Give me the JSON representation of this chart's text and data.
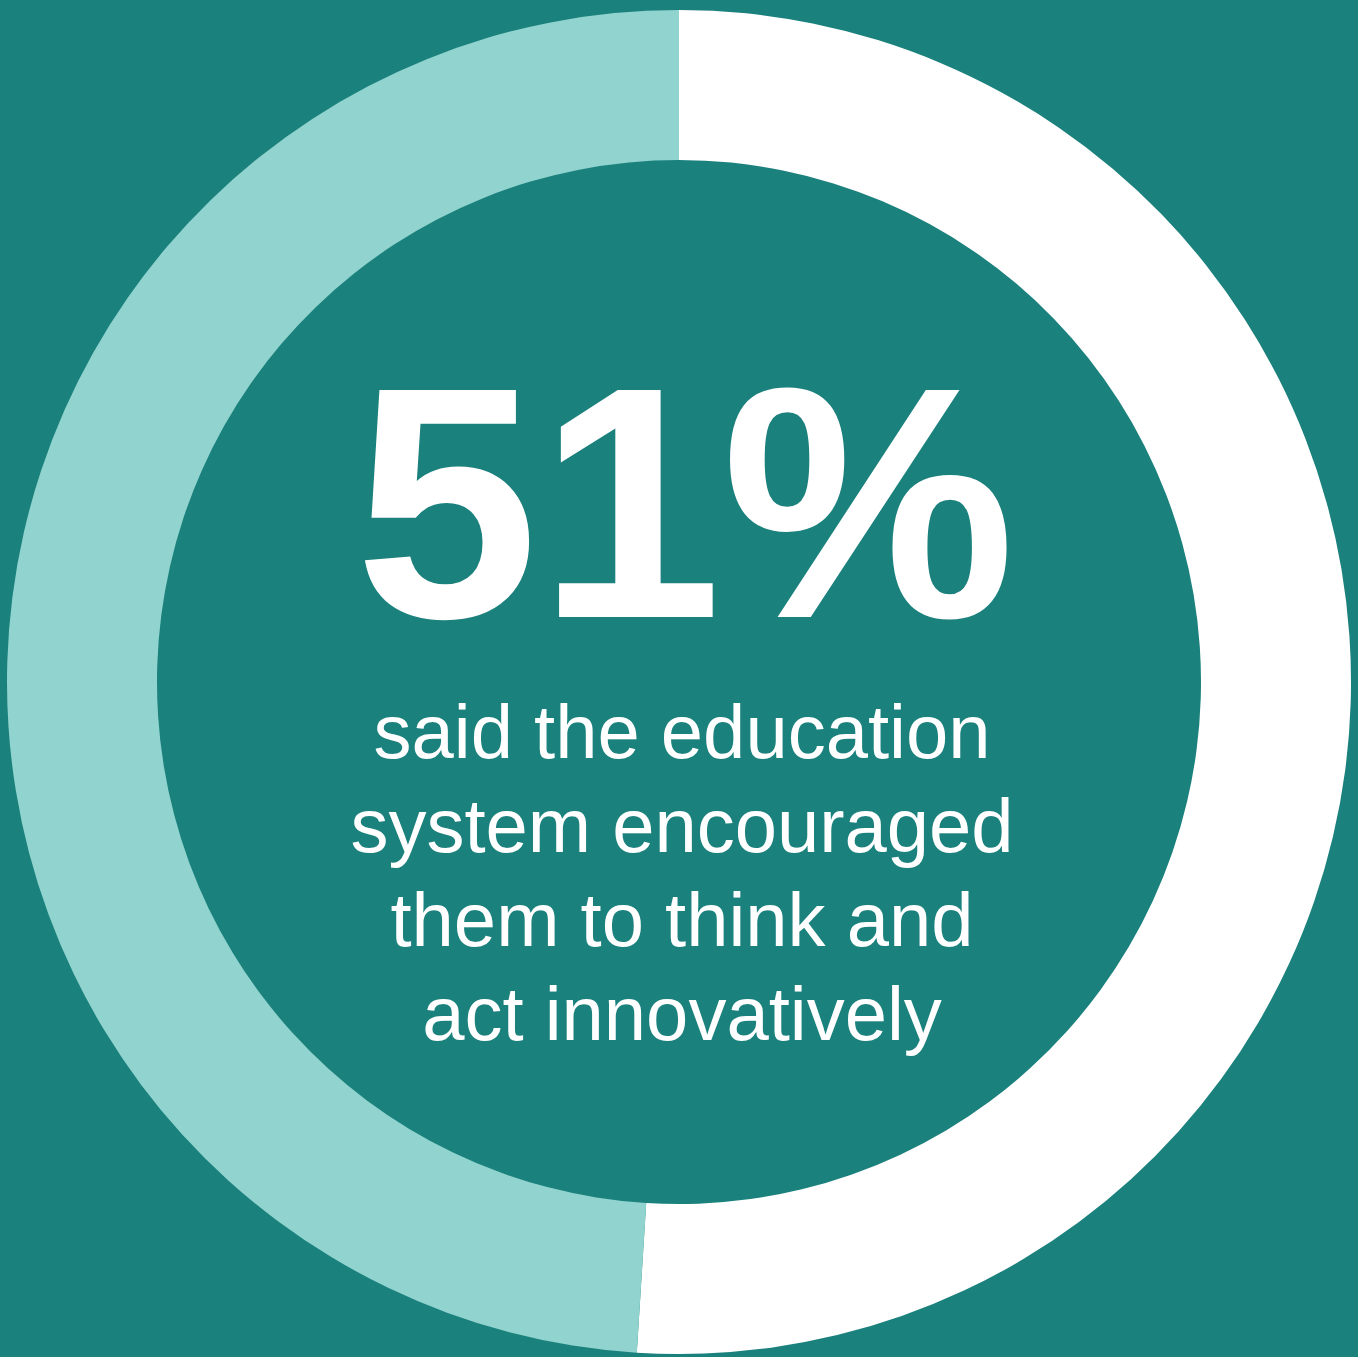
{
  "chart_data": {
    "type": "donut",
    "categories": [
      null,
      null
    ],
    "values": [
      51,
      49
    ],
    "colors": [
      "#ffffff",
      "#91d3ce"
    ],
    "value_labels": [
      "51%",
      null
    ],
    "annotations": [
      "said the education\nsystem encouraged\nthem to think and\nact innovatively"
    ]
  }
}
